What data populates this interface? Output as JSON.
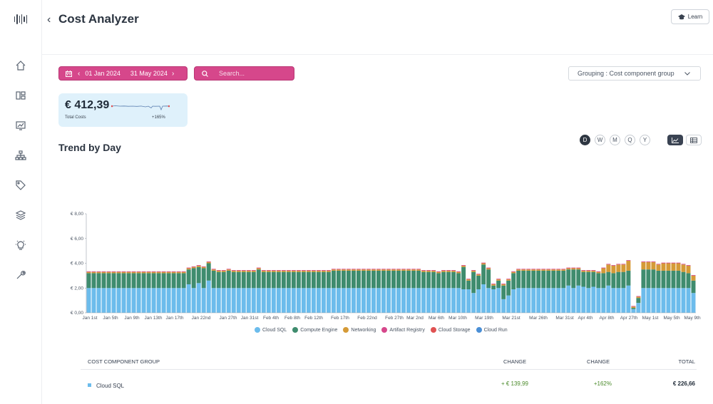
{
  "app": {
    "title": "Cost Analyzer",
    "learn_label": "Learn"
  },
  "date_range": {
    "start": "01 Jan 2024",
    "end": "31 May 2024"
  },
  "search": {
    "placeholder": "Search..."
  },
  "grouping": {
    "label": "Grouping : Cost component group"
  },
  "summary": {
    "amount": "€ 412,39",
    "label": "Total Costs",
    "change": "+165%"
  },
  "trend": {
    "title": "Trend by Day",
    "periods": [
      "D",
      "W",
      "M",
      "Q",
      "Y"
    ],
    "active_period": "D"
  },
  "colors": {
    "accent": "#d6478b",
    "cloud_sql": "#6cbcec",
    "compute_engine": "#3f8c6e",
    "networking": "#d59a37",
    "artifact_registry": "#d6478b",
    "cloud_storage": "#e05252",
    "cloud_run": "#4a8fd6"
  },
  "chart_data": {
    "type": "bar",
    "stacked": true,
    "y_ticks": [
      "€ 0,00",
      "€ 2,00",
      "€ 4,00",
      "€ 6,00",
      "€ 8,00"
    ],
    "ylim": [
      0,
      8
    ],
    "x_ticks": [
      "Jan 1st",
      "Jan 5th",
      "Jan 9th",
      "Jan 13th",
      "Jan 17th",
      "Jan 22nd",
      "Jan 27th",
      "Jan 31st",
      "Feb 4th",
      "Feb 8th",
      "Feb 12th",
      "Feb 17th",
      "Feb 22nd",
      "Feb 27th",
      "Mar 2nd",
      "Mar 6th",
      "Mar 10th",
      "Mar 19th",
      "Mar 21st",
      "Mar 26th",
      "Mar 31st",
      "Apr 4th",
      "Apr 8th",
      "Apr 27th",
      "May 1st",
      "May 5th",
      "May 9th"
    ],
    "series": [
      {
        "name": "Cloud SQL",
        "color": "#6cbcec",
        "values": [
          2,
          2,
          2,
          2,
          2,
          2,
          2,
          2,
          2,
          2,
          2,
          2,
          2,
          2,
          2,
          2,
          2,
          2,
          2,
          2,
          2.3,
          2,
          2.4,
          2,
          2.6,
          2,
          2,
          2,
          2,
          2,
          2,
          2,
          2,
          2,
          2,
          2,
          2,
          2,
          2,
          2,
          2,
          2,
          2,
          2,
          2,
          2,
          2,
          2,
          2,
          2,
          2,
          2,
          2,
          2,
          2,
          2,
          2,
          2,
          2,
          2,
          2,
          2,
          2,
          2,
          2,
          2,
          2,
          2,
          2,
          2,
          2,
          2,
          2,
          2,
          2,
          1.9,
          1.9,
          1.6,
          1.9,
          2.3,
          2,
          1.9,
          2,
          1.1,
          1.4,
          1.9,
          2,
          2,
          2,
          2,
          2,
          2,
          2,
          2,
          2,
          2,
          2.2,
          2,
          2.2,
          2.1,
          2,
          2.1,
          2,
          2,
          2.2,
          2,
          2,
          2,
          2.2,
          0.3,
          0.8,
          2,
          2,
          2,
          2,
          2,
          2,
          2,
          2,
          2,
          2,
          1.6
        ]
      },
      {
        "name": "Compute Engine",
        "color": "#3f8c6e",
        "values": [
          1.2,
          1.2,
          1.2,
          1.2,
          1.2,
          1.2,
          1.2,
          1.2,
          1.2,
          1.2,
          1.2,
          1.2,
          1.2,
          1.2,
          1.2,
          1.2,
          1.2,
          1.2,
          1.2,
          1.2,
          1.2,
          1.6,
          1.3,
          1.6,
          1.4,
          1.4,
          1.3,
          1.3,
          1.4,
          1.3,
          1.3,
          1.3,
          1.3,
          1.3,
          1.5,
          1.3,
          1.3,
          1.3,
          1.3,
          1.3,
          1.3,
          1.3,
          1.3,
          1.3,
          1.3,
          1.3,
          1.3,
          1.3,
          1.3,
          1.4,
          1.4,
          1.4,
          1.4,
          1.4,
          1.4,
          1.4,
          1.4,
          1.4,
          1.4,
          1.4,
          1.4,
          1.4,
          1.4,
          1.4,
          1.4,
          1.4,
          1.4,
          1.3,
          1.3,
          1.3,
          1.2,
          1.3,
          1.3,
          1.3,
          1.2,
          1.8,
          0.7,
          1.7,
          1.1,
          1.6,
          1.5,
          0.3,
          0.6,
          1.1,
          1.2,
          1.3,
          1.4,
          1.4,
          1.4,
          1.4,
          1.4,
          1.4,
          1.4,
          1.4,
          1.4,
          1.4,
          1.3,
          1.5,
          1.3,
          1.2,
          1.3,
          1.2,
          1.2,
          1.2,
          1.1,
          1.2,
          1.3,
          1.3,
          1.2,
          0.1,
          0.4,
          1.5,
          1.5,
          1.5,
          1.4,
          1.4,
          1.4,
          1.4,
          1.4,
          1.3,
          1.2,
          1
        ]
      },
      {
        "name": "Networking",
        "color": "#d59a37",
        "values": [
          0.1,
          0.1,
          0.1,
          0.1,
          0.1,
          0.1,
          0.1,
          0.1,
          0.1,
          0.1,
          0.1,
          0.1,
          0.1,
          0.1,
          0.1,
          0.1,
          0.1,
          0.1,
          0.1,
          0.1,
          0.1,
          0.1,
          0.1,
          0.1,
          0.1,
          0.1,
          0.1,
          0.1,
          0.1,
          0.1,
          0.1,
          0.1,
          0.1,
          0.1,
          0.1,
          0.1,
          0.1,
          0.1,
          0.1,
          0.1,
          0.1,
          0.1,
          0.1,
          0.1,
          0.1,
          0.1,
          0.1,
          0.1,
          0.1,
          0.1,
          0.1,
          0.1,
          0.1,
          0.1,
          0.1,
          0.1,
          0.1,
          0.1,
          0.1,
          0.1,
          0.1,
          0.1,
          0.1,
          0.1,
          0.1,
          0.1,
          0.1,
          0.1,
          0.1,
          0.1,
          0.1,
          0.1,
          0.1,
          0.1,
          0.1,
          0.1,
          0.1,
          0.1,
          0.1,
          0.1,
          0.1,
          0.1,
          0.1,
          0.1,
          0.1,
          0.1,
          0.1,
          0.1,
          0.1,
          0.1,
          0.1,
          0.1,
          0.1,
          0.1,
          0.1,
          0.1,
          0.1,
          0.1,
          0.1,
          0.1,
          0.1,
          0.1,
          0.1,
          0.4,
          0.6,
          0.6,
          0.6,
          0.6,
          0.8,
          0.1,
          0.1,
          0.6,
          0.6,
          0.6,
          0.5,
          0.6,
          0.6,
          0.6,
          0.6,
          0.6,
          0.6,
          0.4
        ]
      },
      {
        "name": "Artifact Registry",
        "color": "#d6478b",
        "values": [
          0.05,
          0.05,
          0.05,
          0.05,
          0.05,
          0.05,
          0.05,
          0.05,
          0.05,
          0.05,
          0.05,
          0.05,
          0.05,
          0.05,
          0.05,
          0.05,
          0.05,
          0.05,
          0.05,
          0.05,
          0.05,
          0.05,
          0.05,
          0.05,
          0.05,
          0.05,
          0.05,
          0.05,
          0.05,
          0.05,
          0.05,
          0.05,
          0.05,
          0.05,
          0.05,
          0.05,
          0.05,
          0.05,
          0.05,
          0.05,
          0.05,
          0.05,
          0.05,
          0.05,
          0.05,
          0.05,
          0.05,
          0.05,
          0.05,
          0.05,
          0.05,
          0.05,
          0.05,
          0.05,
          0.05,
          0.05,
          0.05,
          0.05,
          0.05,
          0.05,
          0.05,
          0.05,
          0.05,
          0.05,
          0.05,
          0.05,
          0.05,
          0.05,
          0.05,
          0.05,
          0.05,
          0.05,
          0.05,
          0.05,
          0.05,
          0.05,
          0.05,
          0.05,
          0.05,
          0.05,
          0.05,
          0.05,
          0.05,
          0.05,
          0.05,
          0.05,
          0.05,
          0.05,
          0.05,
          0.05,
          0.05,
          0.05,
          0.05,
          0.05,
          0.05,
          0.05,
          0.05,
          0.05,
          0.05,
          0.05,
          0.05,
          0.05,
          0.05,
          0.05,
          0.05,
          0.05,
          0.05,
          0.05,
          0.05,
          0.05,
          0.05,
          0.05,
          0.05,
          0.05,
          0.05,
          0.05,
          0.05,
          0.05,
          0.05,
          0.05,
          0.05,
          0.05
        ]
      },
      {
        "name": "Cloud Storage",
        "color": "#e05252",
        "values": []
      },
      {
        "name": "Cloud Run",
        "color": "#4a8fd6",
        "values": []
      }
    ]
  },
  "table": {
    "headers": [
      "COST COMPONENT GROUP",
      "CHANGE",
      "CHANGE",
      "TOTAL"
    ],
    "rows": [
      {
        "name": "Cloud SQL",
        "change_abs": "+ € 139,99",
        "change_pct": "+162%",
        "total": "€ 226,66"
      }
    ]
  }
}
